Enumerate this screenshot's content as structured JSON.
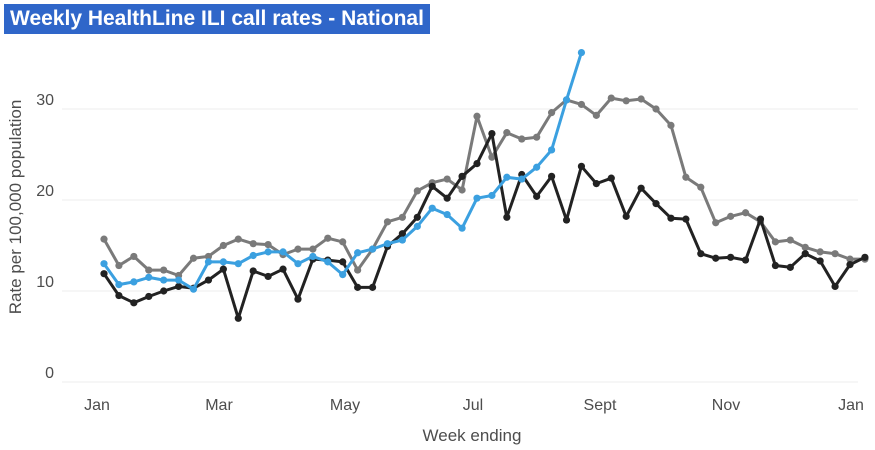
{
  "title": "Weekly HealthLine ILI call rates - National",
  "colors": {
    "title_bg": "#2f66c9",
    "title_text": "#ffffff",
    "gridline": "#ececec",
    "tick_text": "#4d4d4d"
  },
  "chart_data": {
    "type": "line",
    "title": "Weekly HealthLine ILI call rates - National",
    "xlabel": "Week ending",
    "ylabel": "Rate per 100,000 population",
    "x_ticks": [
      "Jan",
      "Mar",
      "May",
      "Jul",
      "Sept",
      "Nov",
      "Jan"
    ],
    "y_ticks": [
      0,
      10,
      20,
      30
    ],
    "ylim": [
      0,
      36
    ],
    "grid": true,
    "series": [
      {
        "color": "#7a7a7a",
        "values": [
          15.7,
          12.8,
          13.8,
          12.3,
          12.3,
          11.7,
          13.6,
          13.8,
          15,
          15.7,
          15.2,
          15.1,
          14,
          14.6,
          14.6,
          15.8,
          15.4,
          12.3,
          14.6,
          17.6,
          18.1,
          21,
          21.9,
          22.3,
          21.1,
          29.2,
          24.7,
          27.4,
          26.7,
          26.9,
          29.6,
          31,
          30.5,
          29.3,
          31.2,
          30.9,
          31.1,
          30,
          28.2,
          22.5,
          21.4,
          17.5,
          18.2,
          18.6,
          17.6,
          15.4,
          15.6,
          14.8,
          14.3,
          14.1,
          13.5,
          13.5
        ]
      },
      {
        "color": "#222222",
        "values": [
          11.9,
          9.5,
          8.7,
          9.4,
          10,
          10.5,
          10.3,
          11.2,
          12.4,
          7,
          12.2,
          11.6,
          12.4,
          9.1,
          13.5,
          13.4,
          13.2,
          10.4,
          10.4,
          14.9,
          16.3,
          18.1,
          21.5,
          20.2,
          22.6,
          24,
          27.3,
          18.1,
          22.8,
          20.4,
          22.6,
          17.8,
          23.7,
          21.8,
          22.4,
          18.2,
          21.3,
          19.6,
          18,
          17.9,
          14.1,
          13.6,
          13.7,
          13.4,
          17.9,
          12.8,
          12.6,
          14.1,
          13.3,
          10.5,
          12.9,
          13.7
        ]
      },
      {
        "color": "#3ba0e0",
        "values": [
          13,
          10.7,
          11,
          11.5,
          11.2,
          11.2,
          10.2,
          13.2,
          13.2,
          13,
          13.9,
          14.3,
          14.3,
          13,
          13.8,
          13.2,
          11.8,
          14.2,
          14.6,
          15.2,
          15.6,
          17.1,
          19.1,
          18.4,
          16.9,
          20.2,
          20.5,
          22.5,
          22.3,
          23.6,
          25.5,
          31,
          36.2
        ]
      }
    ]
  }
}
